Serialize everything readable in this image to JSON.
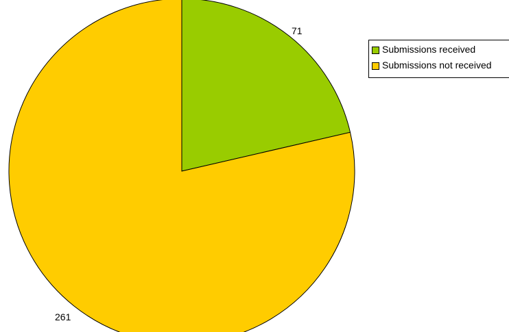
{
  "chart_data": {
    "type": "pie",
    "title": "",
    "slices": [
      {
        "label": "Submissions received",
        "value": 71,
        "color": "#99cc00"
      },
      {
        "label": "Submissions not received",
        "value": 261,
        "color": "#ffcc00"
      }
    ],
    "data_labels": [
      "71",
      "261"
    ],
    "legend_position": "right"
  }
}
